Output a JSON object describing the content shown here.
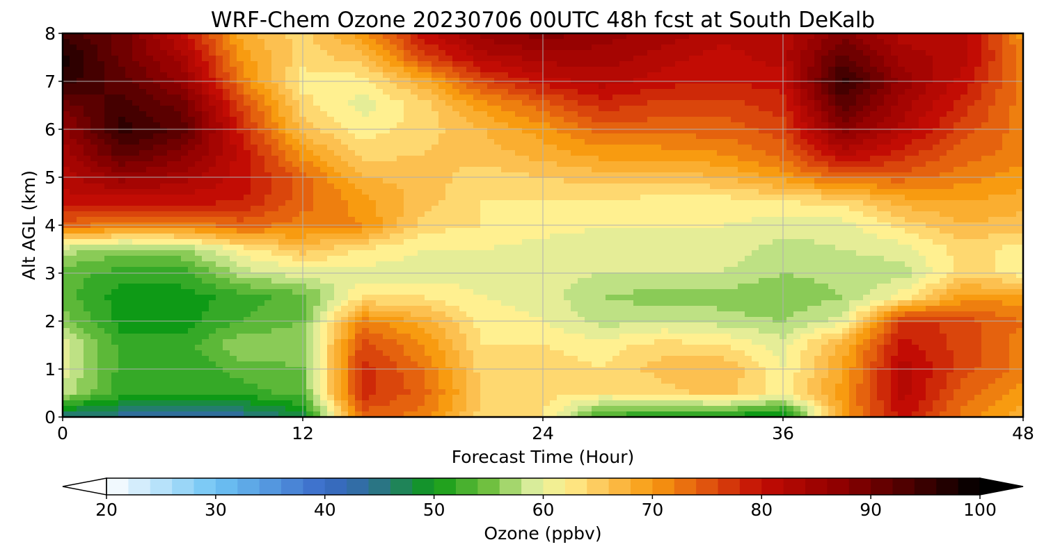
{
  "chart_data": {
    "type": "heatmap",
    "title": "WRF-Chem Ozone  20230706 00UTC 48h fcst at South DeKalb",
    "xlabel": "Forecast Time (Hour)",
    "ylabel": "Alt AGL (km)",
    "xlim": [
      0,
      48
    ],
    "ylim": [
      0,
      8
    ],
    "xticks": [
      0,
      12,
      24,
      36,
      48
    ],
    "yticks": [
      0,
      1,
      2,
      3,
      4,
      5,
      6,
      7,
      8
    ],
    "grid": true,
    "x": [
      0,
      3,
      6,
      9,
      12,
      15,
      18,
      21,
      24,
      27,
      30,
      33,
      36,
      39,
      42,
      45,
      48
    ],
    "y": [
      0,
      0.5,
      1,
      1.5,
      2,
      2.5,
      3,
      3.5,
      4,
      4.5,
      5,
      5.5,
      6,
      6.5,
      7,
      7.5,
      8
    ],
    "z": [
      [
        45,
        44,
        44,
        44,
        48,
        74,
        72,
        64,
        63,
        52,
        51,
        50,
        48,
        70,
        80,
        72,
        68
      ],
      [
        58,
        52,
        52,
        52,
        54,
        78,
        74,
        65,
        64,
        63,
        64,
        66,
        62,
        70,
        82,
        74,
        70
      ],
      [
        60,
        52,
        51,
        54,
        55,
        78,
        73,
        64,
        64,
        63,
        66,
        67,
        61,
        69,
        82,
        76,
        72
      ],
      [
        60,
        52,
        52,
        57,
        56,
        76,
        71,
        63,
        63,
        62,
        64,
        63,
        60,
        68,
        80,
        76,
        72
      ],
      [
        56,
        50,
        50,
        53,
        55,
        72,
        68,
        62,
        61,
        58,
        59,
        58,
        57,
        60,
        78,
        76,
        73
      ],
      [
        54,
        50,
        50,
        52,
        54,
        63,
        63,
        61,
        60,
        57,
        56,
        56,
        55,
        57,
        62,
        70,
        70
      ],
      [
        54,
        52,
        52,
        58,
        60,
        60,
        60,
        60,
        60,
        59,
        59,
        59,
        57,
        58,
        58,
        64,
        62
      ],
      [
        58,
        56,
        57,
        62,
        66,
        63,
        61,
        61,
        60,
        60,
        60,
        60,
        58,
        59,
        60,
        64,
        62
      ],
      [
        74,
        72,
        72,
        74,
        72,
        71,
        64,
        63,
        62,
        61,
        61,
        61,
        60,
        60,
        64,
        67,
        66
      ],
      [
        80,
        80,
        80,
        79,
        74,
        70,
        66,
        63,
        63,
        63,
        62,
        62,
        63,
        64,
        68,
        69,
        68
      ],
      [
        82,
        86,
        84,
        80,
        74,
        67,
        66,
        64,
        65,
        66,
        66,
        67,
        70,
        74,
        74,
        72,
        70
      ],
      [
        84,
        92,
        88,
        80,
        70,
        64,
        65,
        66,
        68,
        70,
        70,
        71,
        74,
        82,
        78,
        74,
        72
      ],
      [
        86,
        96,
        92,
        78,
        66,
        62,
        64,
        67,
        70,
        74,
        74,
        74,
        76,
        88,
        82,
        76,
        72
      ],
      [
        90,
        94,
        90,
        76,
        64,
        60,
        64,
        70,
        74,
        78,
        76,
        76,
        78,
        92,
        84,
        78,
        72
      ],
      [
        96,
        92,
        86,
        72,
        62,
        62,
        68,
        76,
        80,
        82,
        80,
        79,
        80,
        96,
        86,
        80,
        72
      ],
      [
        98,
        90,
        84,
        70,
        64,
        66,
        76,
        82,
        84,
        84,
        82,
        80,
        82,
        92,
        84,
        82,
        72
      ],
      [
        94,
        90,
        80,
        68,
        64,
        70,
        80,
        86,
        88,
        86,
        84,
        82,
        82,
        88,
        82,
        82,
        70
      ]
    ],
    "colorbar": {
      "label": "Ozone  (ppbv)",
      "min": 20,
      "max": 100,
      "ticks": [
        20,
        30,
        40,
        50,
        60,
        70,
        80,
        90,
        100
      ],
      "extend": "both",
      "stops": [
        [
          20,
          "#ffffff"
        ],
        [
          30,
          "#6ec4f4"
        ],
        [
          40,
          "#3a6ac9"
        ],
        [
          44,
          "#2f6e9a"
        ],
        [
          50,
          "#0e9a16"
        ],
        [
          55,
          "#70c040"
        ],
        [
          59,
          "#d8ec9a"
        ],
        [
          62,
          "#fff090"
        ],
        [
          66,
          "#fcc050"
        ],
        [
          70,
          "#f89b10"
        ],
        [
          75,
          "#e0540e"
        ],
        [
          80,
          "#c20c04"
        ],
        [
          87,
          "#900000"
        ],
        [
          93,
          "#500000"
        ],
        [
          100,
          "#000000"
        ]
      ]
    }
  }
}
